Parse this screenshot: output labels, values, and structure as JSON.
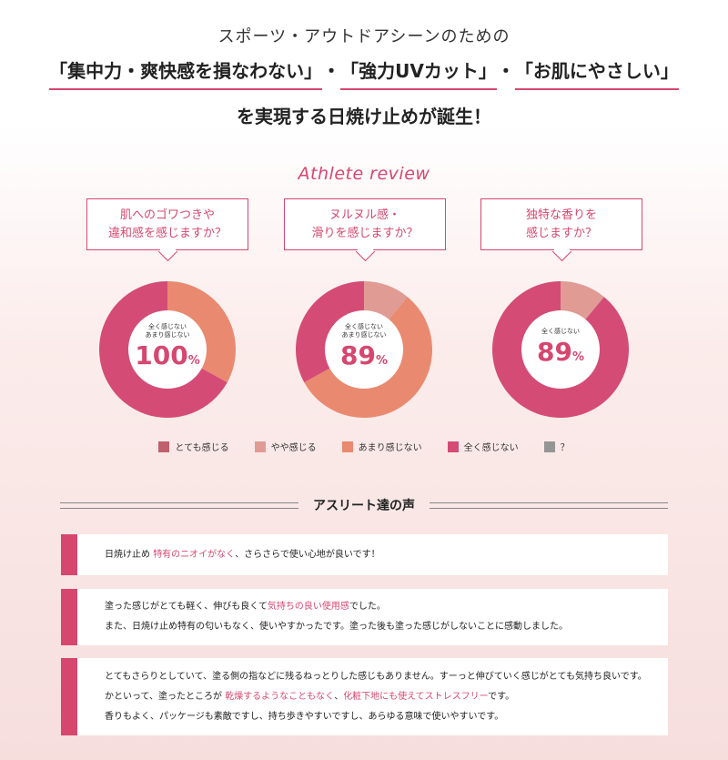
{
  "hero": {
    "line1": "スポーツ・アウトドアシーンのための",
    "line2_parts": [
      "「集中力・爽快感を損なわない」",
      "・",
      "「強力UVカット」",
      "・",
      "「お肌にやさしい」"
    ],
    "line3": "を実現する日焼け止めが誕生！"
  },
  "review_title": "Athlete review",
  "colors": {
    "accent": "#d6476f",
    "strong": "#c0606d",
    "somewhat": "#df9b94",
    "not_much": "#e98a70",
    "not_at_all": "#d44c75",
    "unknown": "#959595"
  },
  "chart_data": [
    {
      "type": "pie",
      "question": [
        "肌へのゴワつきや",
        "違和感を感じますか？"
      ],
      "center_label": [
        "全く感じない",
        "あまり感じない"
      ],
      "center_value": "100",
      "center_unit": "%",
      "slices": [
        {
          "label": "あまり感じない",
          "value": 33,
          "color": "#e98a70"
        },
        {
          "label": "全く感じない",
          "value": 67,
          "color": "#d44c75"
        }
      ]
    },
    {
      "type": "pie",
      "question": [
        "ヌルヌル感・",
        "滑りを感じますか？"
      ],
      "center_label": [
        "全く感じない",
        "あまり感じない"
      ],
      "center_value": "89",
      "center_unit": "%",
      "slices": [
        {
          "label": "やや感じる",
          "value": 11,
          "color": "#df9b94"
        },
        {
          "label": "あまり感じない",
          "value": 56,
          "color": "#e98a70"
        },
        {
          "label": "全く感じない",
          "value": 33,
          "color": "#d44c75"
        }
      ]
    },
    {
      "type": "pie",
      "question": [
        "独特な香りを",
        "感じますか？"
      ],
      "center_label": [
        "全く感じない"
      ],
      "center_value": "89",
      "center_unit": "%",
      "slices": [
        {
          "label": "やや感じる",
          "value": 11,
          "color": "#df9b94"
        },
        {
          "label": "全く感じない",
          "value": 89,
          "color": "#d44c75"
        }
      ]
    }
  ],
  "legend": [
    {
      "label": "とても感じる",
      "color": "#c0606d"
    },
    {
      "label": "やや感じる",
      "color": "#df9b94"
    },
    {
      "label": "あまり感じない",
      "color": "#e98a70"
    },
    {
      "label": "全く感じない",
      "color": "#d44c75"
    },
    {
      "label": "？",
      "color": "#959595"
    }
  ],
  "voices_title": "アスリート達の声",
  "voices": [
    {
      "lines": [
        [
          {
            "t": "日焼け止め "
          },
          {
            "t": "特有のニオイがなく",
            "em": true
          },
          {
            "t": "、さらさらで使い心地が良いです！"
          }
        ]
      ]
    },
    {
      "lines": [
        [
          {
            "t": "塗った感じがとても軽く、伸びも良くて"
          },
          {
            "t": "気持ちの良い使用感",
            "em": true
          },
          {
            "t": "でした。"
          }
        ],
        [
          {
            "t": "また、日焼け止め特有の匂いもなく、使いやすかったです。塗った後も塗った感じがしないことに感動しました。"
          }
        ]
      ]
    },
    {
      "lines": [
        [
          {
            "t": "とてもさらりとしていて、塗る側の指などに残るねっとりした感じもありません。すーっと伸びていく感じがとても気持ち良いです。"
          }
        ],
        [
          {
            "t": "かといって、塗ったところが "
          },
          {
            "t": "乾燥するようなこともなく",
            "em": true
          },
          {
            "t": "、"
          },
          {
            "t": "化粧下地にも使えてストレスフリー",
            "em": true
          },
          {
            "t": "です。"
          }
        ],
        [
          {
            "t": "香りもよく、パッケージも素敵ですし、持ち歩きやすいですし、あらゆる意味で使いやすいです。"
          }
        ]
      ]
    }
  ]
}
